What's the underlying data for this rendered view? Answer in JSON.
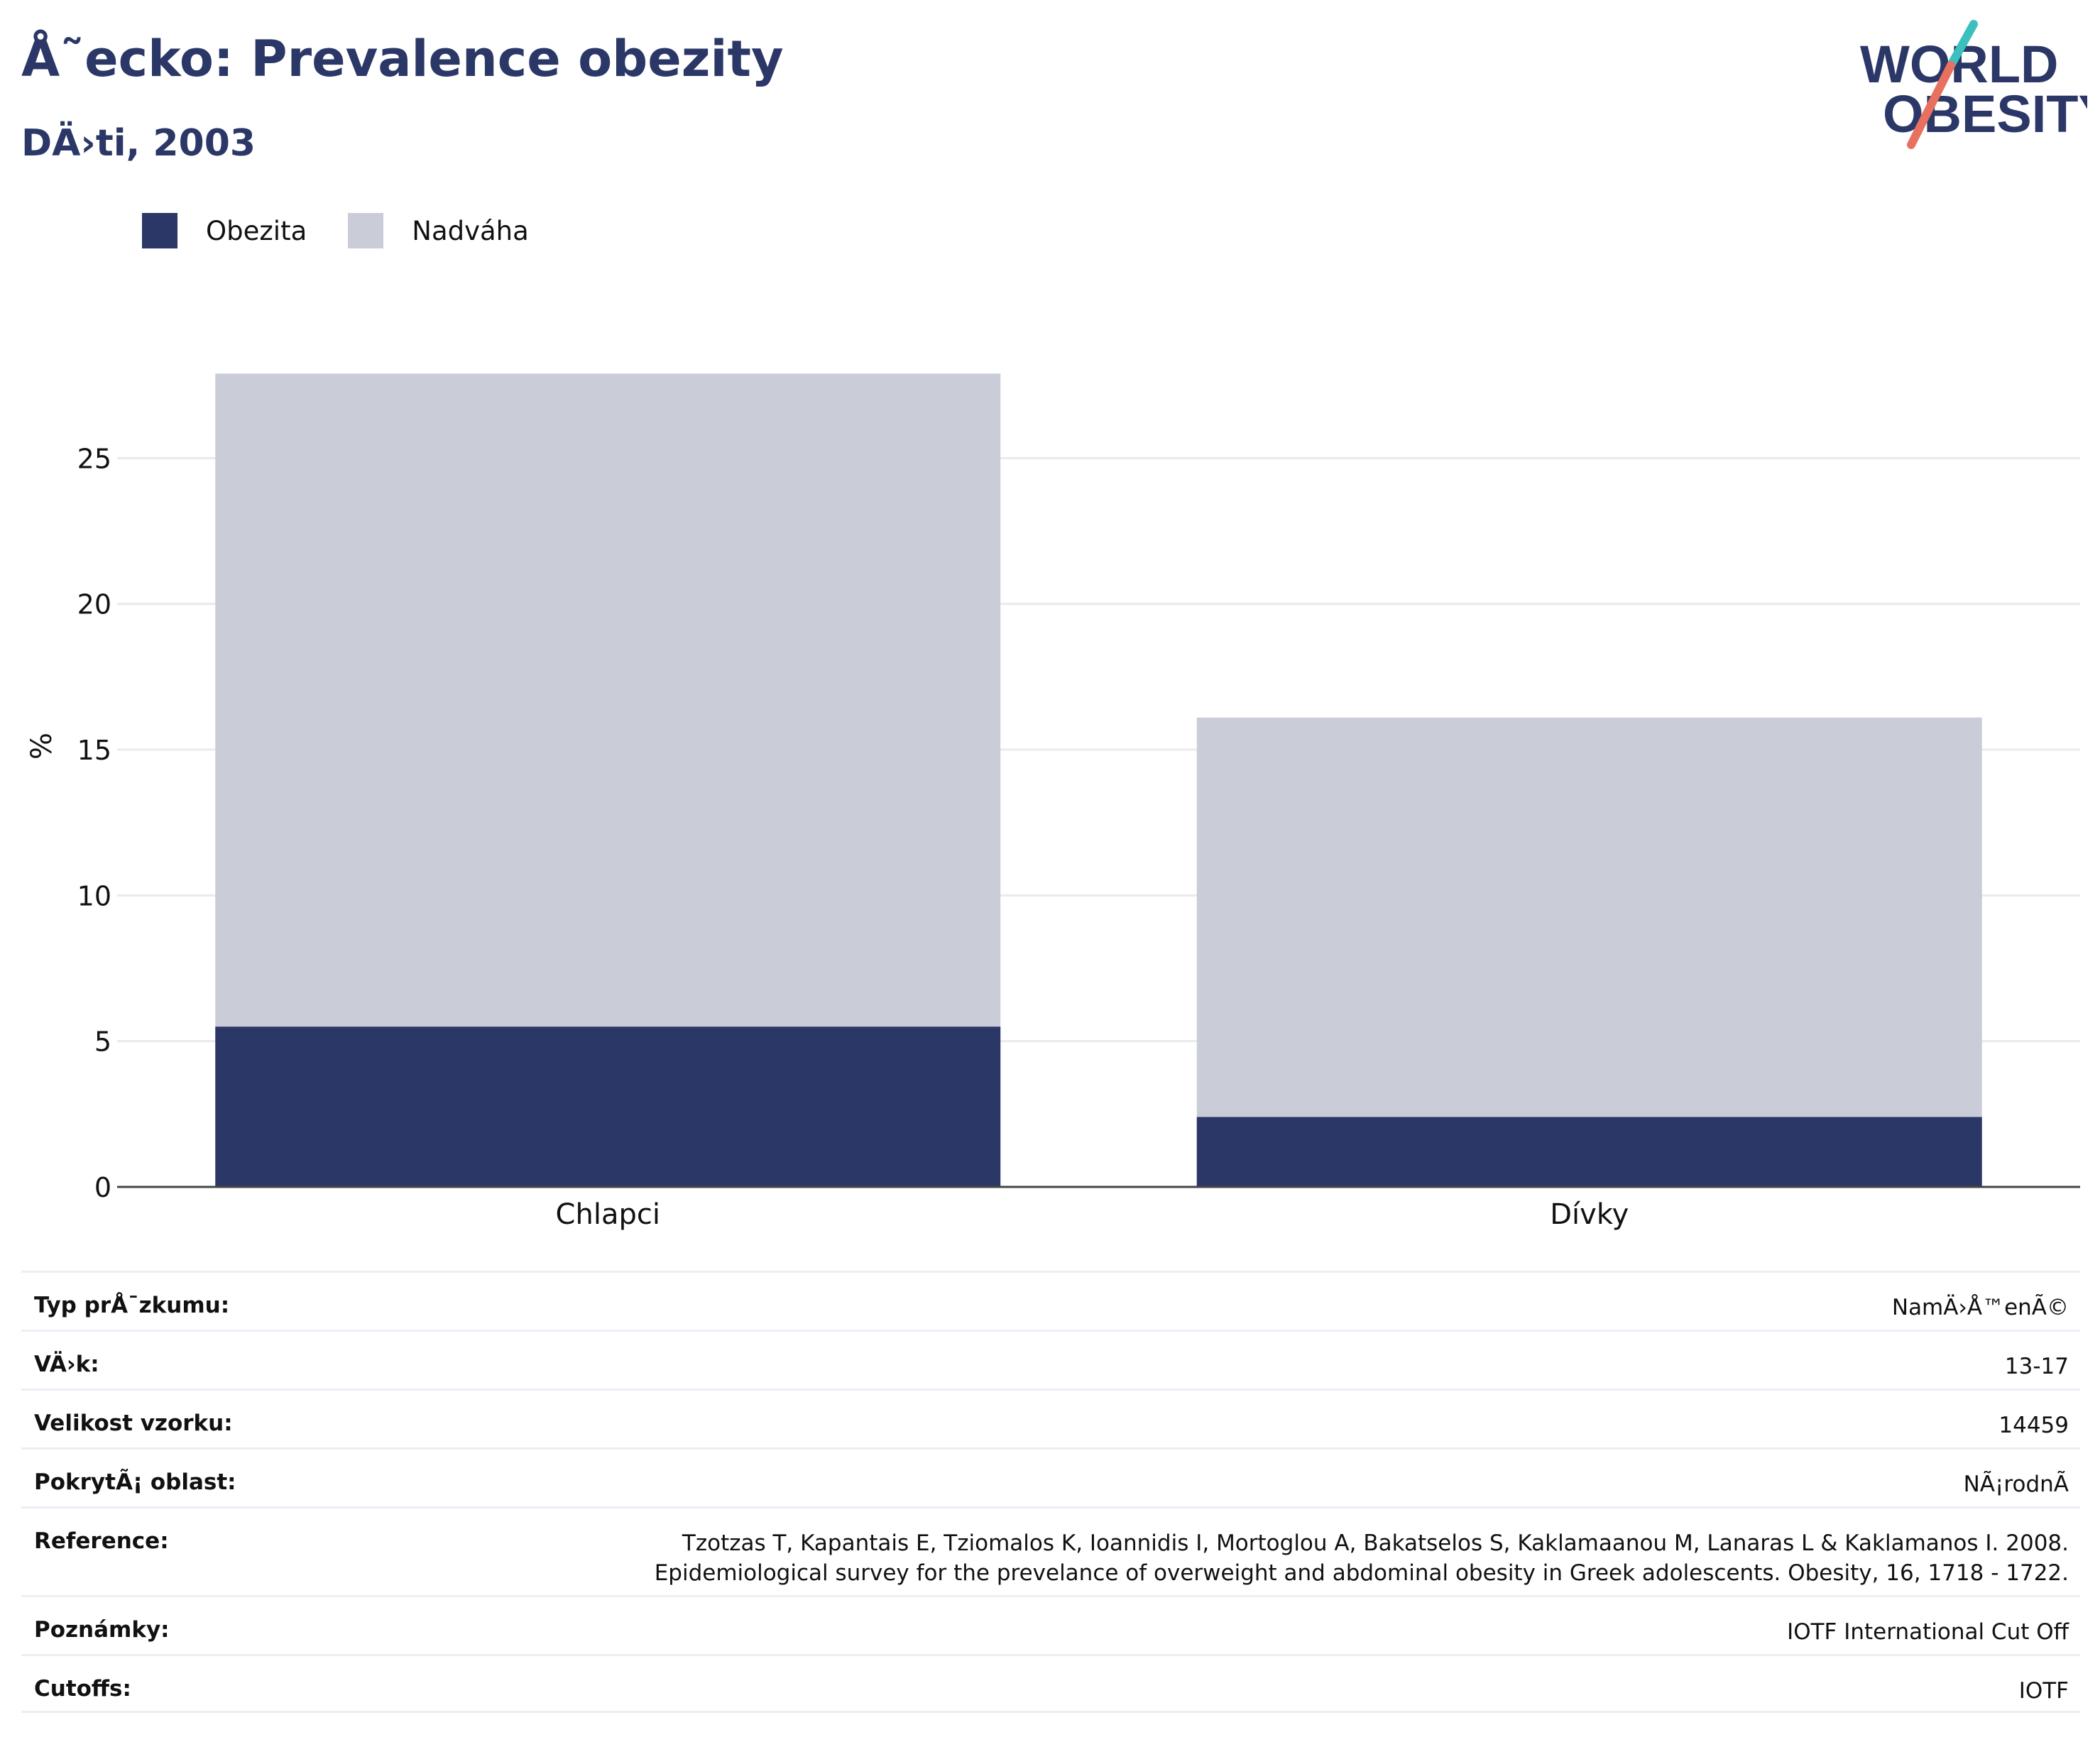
{
  "header": {
    "title": "Å˜ecko: Prevalence obezity",
    "subtitle": "DÄ›ti, 2003"
  },
  "logo": {
    "line1": "WORLD",
    "line2": "OBESITY",
    "text_color": "#2b3766",
    "slash_top_color": "#3bbfbf",
    "slash_bottom_color": "#e8705f"
  },
  "legend": {
    "items": [
      {
        "label": "Obezita",
        "color": "#2b3766"
      },
      {
        "label": "Nadváha",
        "color": "#cacdd8"
      }
    ]
  },
  "chart_data": {
    "type": "bar",
    "stacked": true,
    "categories": [
      "Chlapci",
      "Dívky"
    ],
    "series": [
      {
        "name": "Obezita",
        "values": [
          5.5,
          2.4
        ],
        "color": "#2b3766"
      },
      {
        "name": "Nadváha",
        "values": [
          22.4,
          13.7
        ],
        "color": "#cacdd8"
      }
    ],
    "ylabel": "%",
    "ylim": [
      0,
      30
    ],
    "yticks": [
      0,
      5,
      10,
      15,
      20,
      25
    ],
    "grid": true,
    "legend_position": "top-left"
  },
  "info_table": {
    "rows": [
      {
        "key": "Typ prÅ¯zkumu:",
        "value": [
          "NamÄ›Å™enÃ©"
        ]
      },
      {
        "key": "VÄ›k:",
        "value": [
          "13-17"
        ]
      },
      {
        "key": "Velikost vzorku:",
        "value": [
          "14459"
        ]
      },
      {
        "key": "PokrytÃ¡ oblast:",
        "value": [
          "NÃ¡rodnÃ"
        ]
      },
      {
        "key": "Reference:",
        "value": [
          "Tzotzas T, Kapantais E, Tziomalos K, Ioannidis I, Mortoglou A, Bakatselos S, Kaklamaanou M, Lanaras L & Kaklamanos I. 2008.",
          "Epidemiological survey for the prevelance of overweight and abdominal obesity in Greek adolescents. Obesity, 16, 1718 - 1722."
        ]
      },
      {
        "key": "Poznámky:",
        "value": [
          "IOTF International Cut Off"
        ]
      },
      {
        "key": "Cutoffs:",
        "value": [
          "IOTF"
        ]
      }
    ]
  }
}
